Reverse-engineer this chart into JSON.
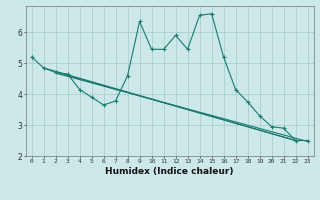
{
  "title": "",
  "xlabel": "Humidex (Indice chaleur)",
  "bg_color": "#cce8e8",
  "grid_color": "#aad0d0",
  "line_color": "#1a7a6e",
  "xlim": [
    -0.5,
    23.5
  ],
  "ylim": [
    2.0,
    6.85
  ],
  "xticks": [
    0,
    1,
    2,
    3,
    4,
    5,
    6,
    7,
    8,
    9,
    10,
    11,
    12,
    13,
    14,
    15,
    16,
    17,
    18,
    19,
    20,
    21,
    22,
    23
  ],
  "yticks": [
    2,
    3,
    4,
    5,
    6
  ],
  "line1_x": [
    0,
    1,
    2,
    3,
    4,
    5,
    6,
    7,
    8,
    9,
    10,
    11,
    12,
    13,
    14,
    15,
    16,
    17,
    18,
    19,
    20,
    21,
    22,
    23
  ],
  "line1_y": [
    5.2,
    4.85,
    4.7,
    4.65,
    4.15,
    3.9,
    3.65,
    3.78,
    4.6,
    6.35,
    5.45,
    5.45,
    5.9,
    5.45,
    6.55,
    6.6,
    5.2,
    4.15,
    3.75,
    3.3,
    2.95,
    2.9,
    2.5,
    2.5
  ],
  "line2_x": [
    1,
    22
  ],
  "line2_y": [
    4.85,
    2.5
  ],
  "line3_x": [
    2,
    22
  ],
  "line3_y": [
    4.72,
    2.5
  ],
  "line4_x": [
    2,
    23
  ],
  "line4_y": [
    4.68,
    2.47
  ]
}
